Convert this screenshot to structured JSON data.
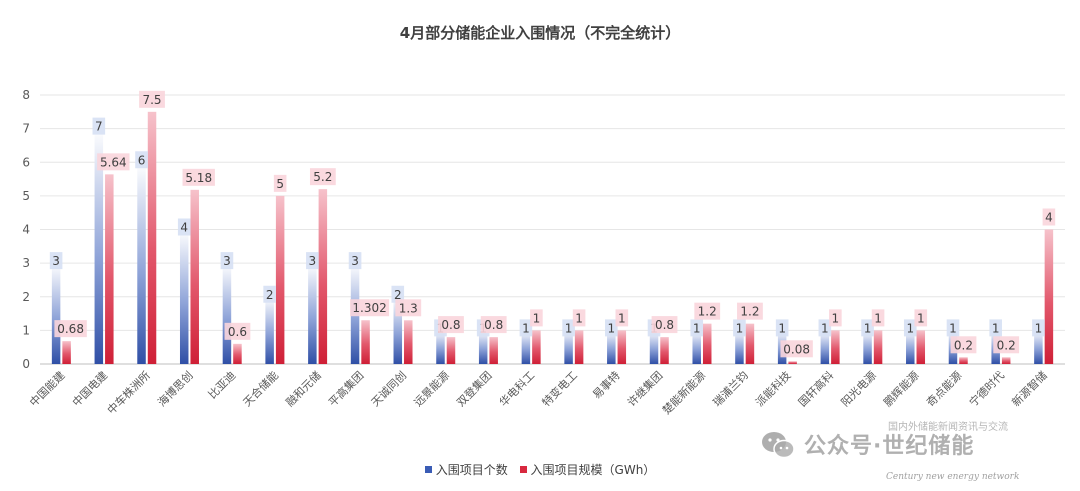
{
  "chart_data": {
    "type": "bar",
    "title": "4月部分储能企业入围情况（不完全统计）",
    "categories": [
      "中国能建",
      "中国电建",
      "中车株洲所",
      "海博思创",
      "比亚迪",
      "天合储能",
      "融和元储",
      "平高集团",
      "天诚同创",
      "远景能源",
      "双登集团",
      "华电科工",
      "特变电工",
      "易事特",
      "许继集团",
      "楚能新能源",
      "瑞浦兰钧",
      "派能科技",
      "国轩高科",
      "阳光电源",
      "鹏辉能源",
      "奇点能源",
      "宁德时代",
      "新源智储"
    ],
    "series": [
      {
        "name": "入围项目个数",
        "values": [
          3,
          7,
          6,
          4,
          3,
          2,
          3,
          3,
          2,
          1,
          1,
          1,
          1,
          1,
          1,
          1,
          1,
          1,
          1,
          1,
          1,
          1,
          1,
          1
        ],
        "color": "#3a5cb5"
      },
      {
        "name": "入围项目规模（GWh）",
        "values": [
          0.68,
          5.64,
          7.5,
          5.18,
          0.6,
          5,
          5.2,
          1.302,
          1.3,
          0.8,
          0.8,
          1,
          1,
          1,
          0.8,
          1.2,
          1.2,
          0.08,
          1,
          1,
          1,
          0.2,
          0.2,
          4
        ],
        "color": "#d8293f"
      }
    ],
    "data_labels": {
      "series_0": [
        "3",
        "7",
        "6",
        "4",
        "3",
        "2",
        "3",
        "3",
        "2",
        "1",
        "1",
        "1",
        "1",
        "1",
        "1",
        "1",
        "1",
        "1",
        "1",
        "1",
        "1",
        "1",
        "1",
        "1"
      ],
      "series_1": [
        "0.68",
        "5.64",
        "7.5",
        "5.18",
        "0.6",
        "5",
        "5.2",
        "1.302",
        "1.3",
        "0.8",
        "0.8",
        "1",
        "1",
        "1",
        "0.8",
        "1.2",
        "1.2",
        "0.08",
        "1",
        "1",
        "1",
        "0.2",
        "0.2",
        "4"
      ]
    },
    "y_ticks": [
      "0",
      "1",
      "2",
      "3",
      "4",
      "5",
      "6",
      "7",
      "8"
    ],
    "ylim": [
      0,
      8
    ],
    "grid": true,
    "legend_position": "bottom"
  },
  "watermark": {
    "main_text": "公众号·世纪储能",
    "sub_text": "国内外储能新闻资讯与交流",
    "english_text": "Century new energy network"
  },
  "icons": {
    "watermark_logo": "wechat-icon"
  }
}
